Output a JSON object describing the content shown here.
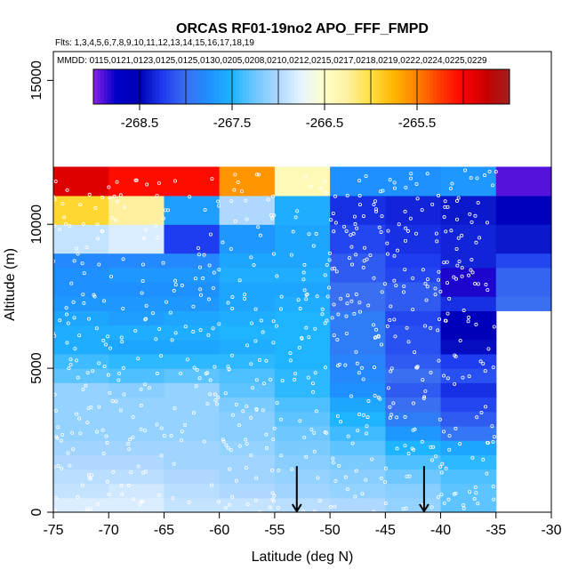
{
  "chart_data": {
    "type": "heatmap",
    "title": "ORCAS RF01-19no2 APO_FFF_FMPD",
    "flights_note": "Flts: 1,3,4,5,6,7,8,9,10,11,12,13,14,15,16,17,18,19",
    "dates_note": "MMDD: 0115,0121,0123,0125,0125,0130,0205,0208,0210,0212,0215,0217,0218,0219,0222,0224,0225,0229",
    "xlabel": "Latitude (deg N)",
    "ylabel": "Altitude (m)",
    "xlim": [
      -75,
      -30
    ],
    "ylim": [
      0,
      16000
    ],
    "x_ticks": [
      -75,
      -70,
      -65,
      -60,
      -55,
      -50,
      -45,
      -40,
      -35,
      -30
    ],
    "y_ticks": [
      0,
      5000,
      10000,
      15000
    ],
    "grid": false,
    "colorbar": {
      "placement": "top-inside",
      "range": [
        -269.0,
        -264.5
      ],
      "tick_values": [
        -268.5,
        -267.5,
        -266.5,
        -265.5
      ],
      "tick_labels": [
        "-268.5",
        "-267.5",
        "-266.5",
        "-265.5"
      ],
      "palette": [
        "#8a20e8",
        "#0000c8",
        "#0000b4",
        "#1e3cf0",
        "#3a6ff2",
        "#1e90ff",
        "#1eb4ff",
        "#6ec8ff",
        "#aed8ff",
        "#e6f4ff",
        "#ffffc8",
        "#fff0a0",
        "#ffe040",
        "#ffb400",
        "#ff8000",
        "#ff3c00",
        "#ff0000",
        "#c80000",
        "#a02020"
      ]
    },
    "lat_edges": [
      -75,
      -70,
      -65,
      -60,
      -55,
      -50,
      -45,
      -40,
      -35,
      -30
    ],
    "alt_edges": [
      0,
      500,
      1000,
      1500,
      2000,
      2500,
      3000,
      3500,
      4000,
      4500,
      5000,
      5500,
      6000,
      6500,
      7000,
      7500,
      8000,
      8500,
      9000,
      9500,
      10000,
      10500,
      11000,
      11500,
      12000
    ],
    "cells": [
      {
        "row": 0,
        "values": [
          -266.8,
          -266.8,
          -266.9,
          -266.9,
          -266.95,
          -267.0,
          -267.1,
          -267.3,
          null
        ]
      },
      {
        "row": 1,
        "values": [
          -266.9,
          -266.85,
          -266.95,
          -267.0,
          -267.05,
          -267.1,
          -267.15,
          -267.3,
          null
        ]
      },
      {
        "row": 2,
        "values": [
          -266.95,
          -266.95,
          -267.0,
          -267.05,
          -267.1,
          -267.15,
          -267.25,
          -267.35,
          null
        ]
      },
      {
        "row": 3,
        "values": [
          -267.0,
          -267.0,
          -267.05,
          -267.05,
          -267.15,
          -267.2,
          -267.35,
          -267.45,
          null
        ]
      },
      {
        "row": 4,
        "values": [
          -267.05,
          -267.05,
          -267.05,
          -267.1,
          -267.2,
          -267.3,
          -267.5,
          -267.6,
          null
        ]
      },
      {
        "row": 5,
        "values": [
          -267.1,
          -267.1,
          -267.1,
          -267.15,
          -267.25,
          -267.4,
          -267.7,
          -267.95,
          null
        ]
      },
      {
        "row": 6,
        "values": [
          -267.1,
          -267.1,
          -267.1,
          -267.15,
          -267.3,
          -267.5,
          -267.9,
          -268.1,
          null
        ]
      },
      {
        "row": 7,
        "values": [
          -267.1,
          -267.1,
          -267.1,
          -267.2,
          -267.35,
          -267.6,
          -268.0,
          -268.2,
          null
        ]
      },
      {
        "row": 8,
        "values": [
          -267.1,
          -267.15,
          -267.1,
          -267.3,
          -267.45,
          -267.75,
          -268.1,
          -268.3,
          null
        ]
      },
      {
        "row": 9,
        "values": [
          -267.3,
          -267.35,
          -267.3,
          -267.35,
          -267.45,
          -267.8,
          -268.0,
          -268.15,
          null
        ]
      },
      {
        "row": 10,
        "values": [
          -267.4,
          -267.45,
          -267.45,
          -267.45,
          -267.5,
          -267.85,
          -268.1,
          -268.25,
          null
        ]
      },
      {
        "row": 11,
        "values": [
          -267.55,
          -267.6,
          -267.6,
          -267.55,
          -267.5,
          -267.9,
          -268.15,
          -268.45,
          null
        ]
      },
      {
        "row": 12,
        "values": [
          -267.55,
          -267.55,
          -267.55,
          -267.5,
          -267.5,
          -267.9,
          -268.15,
          -268.55,
          null
        ]
      },
      {
        "row": 13,
        "values": [
          -267.6,
          -267.65,
          -267.6,
          -267.55,
          -267.5,
          -267.9,
          -268.2,
          -268.6,
          null
        ]
      },
      {
        "row": 14,
        "values": [
          -267.7,
          -267.7,
          -267.7,
          -267.6,
          -267.55,
          -268.0,
          -268.1,
          -268.3,
          -268.0
        ]
      },
      {
        "row": 15,
        "values": [
          -267.75,
          -267.75,
          -267.75,
          -267.6,
          -267.6,
          -268.0,
          -268.1,
          -268.8,
          -268.05
        ]
      },
      {
        "row": 16,
        "values": [
          -267.75,
          -267.7,
          -267.7,
          -267.55,
          -267.55,
          -268.1,
          -268.2,
          -268.8,
          -268.05
        ]
      },
      {
        "row": 17,
        "values": [
          -267.8,
          -267.8,
          -267.8,
          -267.6,
          -267.6,
          -268.1,
          -268.25,
          -268.35,
          -268.2
        ]
      },
      {
        "row": 18,
        "values": [
          -266.9,
          -266.8,
          -268.25,
          -267.7,
          -267.6,
          -268.2,
          -268.3,
          -268.35,
          -268.4
        ]
      },
      {
        "row": 19,
        "values": [
          -266.9,
          -266.8,
          -268.25,
          -267.7,
          -267.6,
          -268.2,
          -268.3,
          -268.35,
          -268.4
        ]
      },
      {
        "row": 20,
        "values": [
          -265.95,
          -266.25,
          -267.65,
          -267.0,
          -267.55,
          -268.3,
          -268.35,
          -268.4,
          -268.6
        ]
      },
      {
        "row": 21,
        "values": [
          -265.95,
          -266.25,
          -267.65,
          -267.0,
          -267.55,
          -268.3,
          -268.35,
          -268.4,
          -268.6
        ]
      },
      {
        "row": 22,
        "values": [
          -264.85,
          -265.05,
          -265.05,
          -265.6,
          -266.4,
          -267.75,
          -267.75,
          -267.7,
          -268.9
        ]
      },
      {
        "row": 23,
        "values": [
          -264.85,
          -265.05,
          -265.05,
          -265.6,
          -266.4,
          -267.75,
          -267.75,
          -267.7,
          -268.9
        ]
      }
    ],
    "markers": [
      {
        "type": "down-arrow",
        "x": -53,
        "y": 1600
      },
      {
        "type": "down-arrow",
        "x": -41.5,
        "y": 1600
      }
    ]
  }
}
